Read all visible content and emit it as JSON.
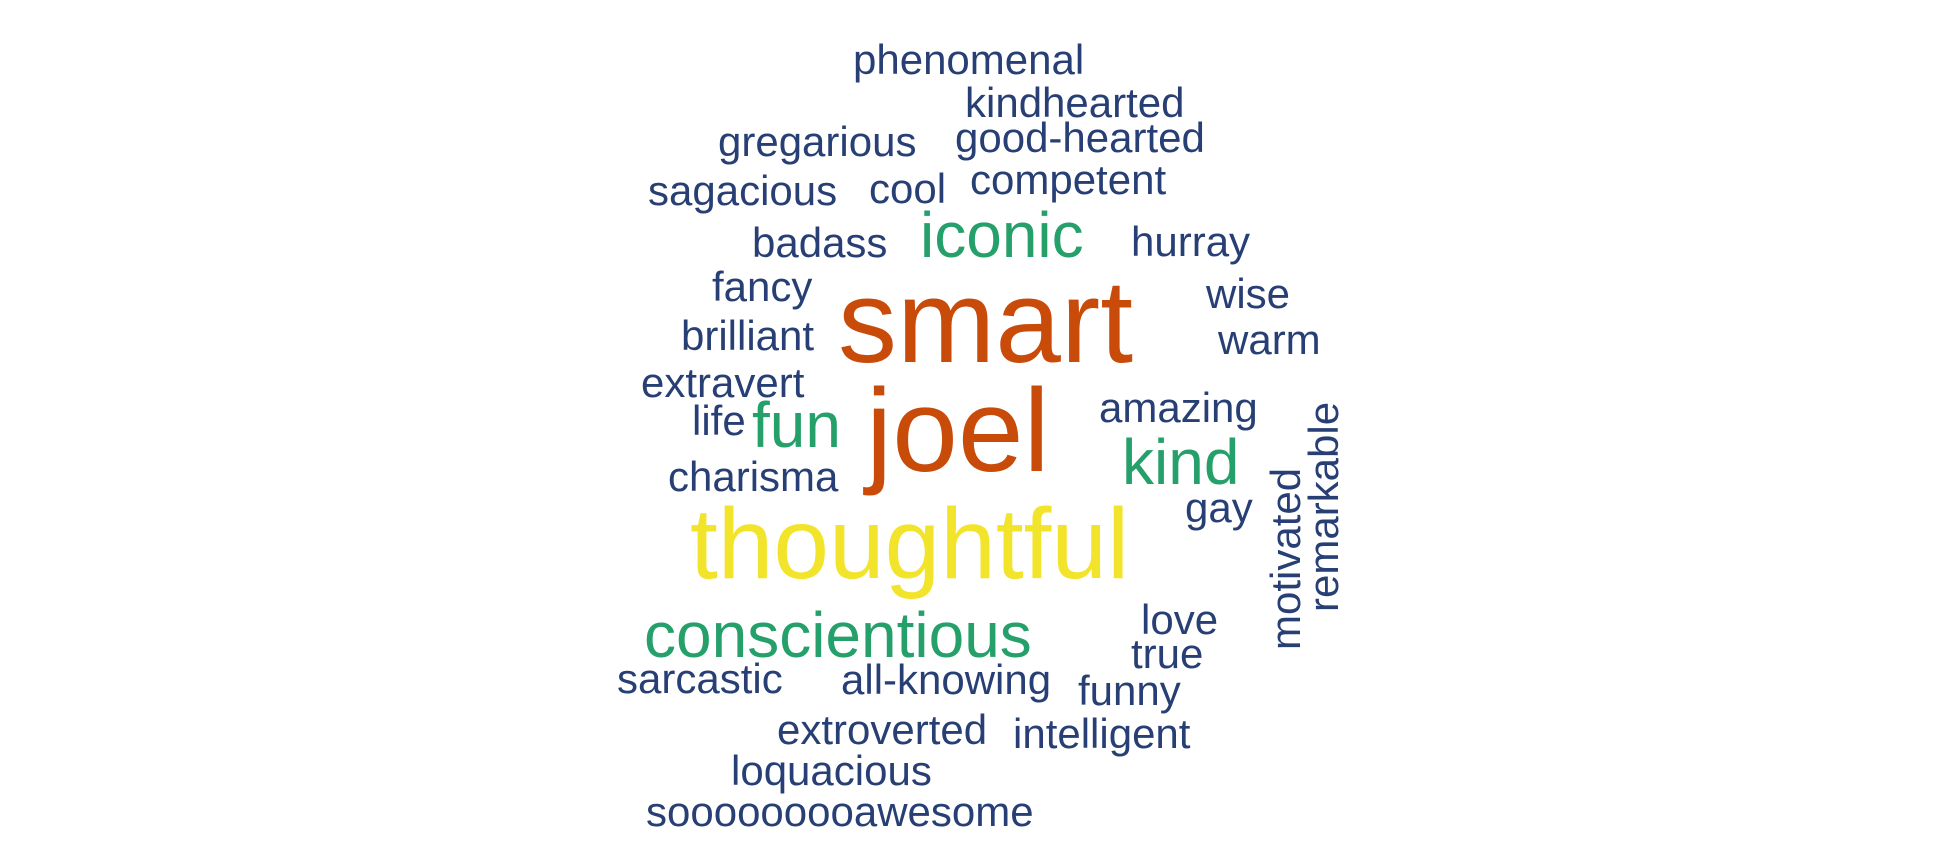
{
  "palette": {
    "orange": "#c94b0a",
    "yellow": "#f2e42a",
    "green": "#26a06a",
    "navy": "#273f74"
  },
  "words": [
    {
      "text": "smart",
      "color": "#c94b0a",
      "weight": 10
    },
    {
      "text": "joel",
      "color": "#c94b0a",
      "weight": 10
    },
    {
      "text": "thoughtful",
      "color": "#f2e42a",
      "weight": 8
    },
    {
      "text": "iconic",
      "color": "#26a06a",
      "weight": 5
    },
    {
      "text": "fun",
      "color": "#26a06a",
      "weight": 5
    },
    {
      "text": "kind",
      "color": "#26a06a",
      "weight": 5
    },
    {
      "text": "conscientious",
      "color": "#26a06a",
      "weight": 5
    },
    {
      "text": "phenomenal",
      "color": "#273f74",
      "weight": 3
    },
    {
      "text": "kindhearted",
      "color": "#273f74",
      "weight": 3
    },
    {
      "text": "gregarious",
      "color": "#273f74",
      "weight": 3
    },
    {
      "text": "good-hearted",
      "color": "#273f74",
      "weight": 3
    },
    {
      "text": "sagacious",
      "color": "#273f74",
      "weight": 3
    },
    {
      "text": "cool",
      "color": "#273f74",
      "weight": 3
    },
    {
      "text": "competent",
      "color": "#273f74",
      "weight": 3
    },
    {
      "text": "badass",
      "color": "#273f74",
      "weight": 3
    },
    {
      "text": "hurray",
      "color": "#273f74",
      "weight": 3
    },
    {
      "text": "fancy",
      "color": "#273f74",
      "weight": 3
    },
    {
      "text": "wise",
      "color": "#273f74",
      "weight": 3
    },
    {
      "text": "brilliant",
      "color": "#273f74",
      "weight": 3
    },
    {
      "text": "warm",
      "color": "#273f74",
      "weight": 3
    },
    {
      "text": "extravert",
      "color": "#273f74",
      "weight": 3
    },
    {
      "text": "life",
      "color": "#273f74",
      "weight": 3
    },
    {
      "text": "amazing",
      "color": "#273f74",
      "weight": 3
    },
    {
      "text": "remarkable",
      "color": "#273f74",
      "weight": 3,
      "vertical": true
    },
    {
      "text": "charisma",
      "color": "#273f74",
      "weight": 3
    },
    {
      "text": "motivated",
      "color": "#273f74",
      "weight": 3,
      "vertical": true
    },
    {
      "text": "gay",
      "color": "#273f74",
      "weight": 3
    },
    {
      "text": "love",
      "color": "#273f74",
      "weight": 3
    },
    {
      "text": "true",
      "color": "#273f74",
      "weight": 3
    },
    {
      "text": "sarcastic",
      "color": "#273f74",
      "weight": 3
    },
    {
      "text": "all-knowing",
      "color": "#273f74",
      "weight": 3
    },
    {
      "text": "funny",
      "color": "#273f74",
      "weight": 3
    },
    {
      "text": "extroverted",
      "color": "#273f74",
      "weight": 3
    },
    {
      "text": "intelligent",
      "color": "#273f74",
      "weight": 3
    },
    {
      "text": "loquacious",
      "color": "#273f74",
      "weight": 3
    },
    {
      "text": "sooooooooawesome",
      "color": "#273f74",
      "weight": 3
    }
  ]
}
